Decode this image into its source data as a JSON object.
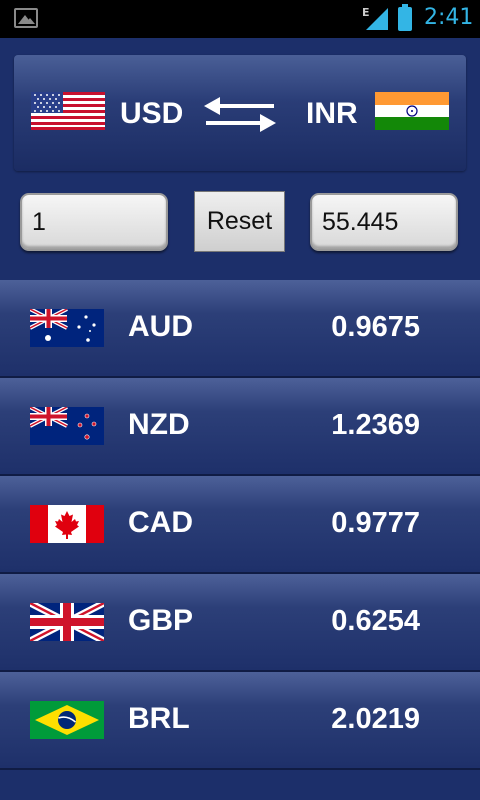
{
  "status_bar": {
    "network": "E",
    "time": "2:41",
    "battery_color": "#33b5e5"
  },
  "converter": {
    "from_code": "USD",
    "from_flag": "us-flag-icon",
    "to_code": "INR",
    "to_flag": "india-flag-icon",
    "amount_value": "1",
    "reset_label": "Reset",
    "result_value": "55.445"
  },
  "rates": [
    {
      "code": "AUD",
      "rate": "0.9675",
      "flag": "australia-flag-icon"
    },
    {
      "code": "NZD",
      "rate": "1.2369",
      "flag": "new-zealand-flag-icon"
    },
    {
      "code": "CAD",
      "rate": "0.9777",
      "flag": "canada-flag-icon"
    },
    {
      "code": "GBP",
      "rate": "0.6254",
      "flag": "uk-flag-icon"
    },
    {
      "code": "BRL",
      "rate": "2.0219",
      "flag": "brazil-flag-icon"
    }
  ]
}
